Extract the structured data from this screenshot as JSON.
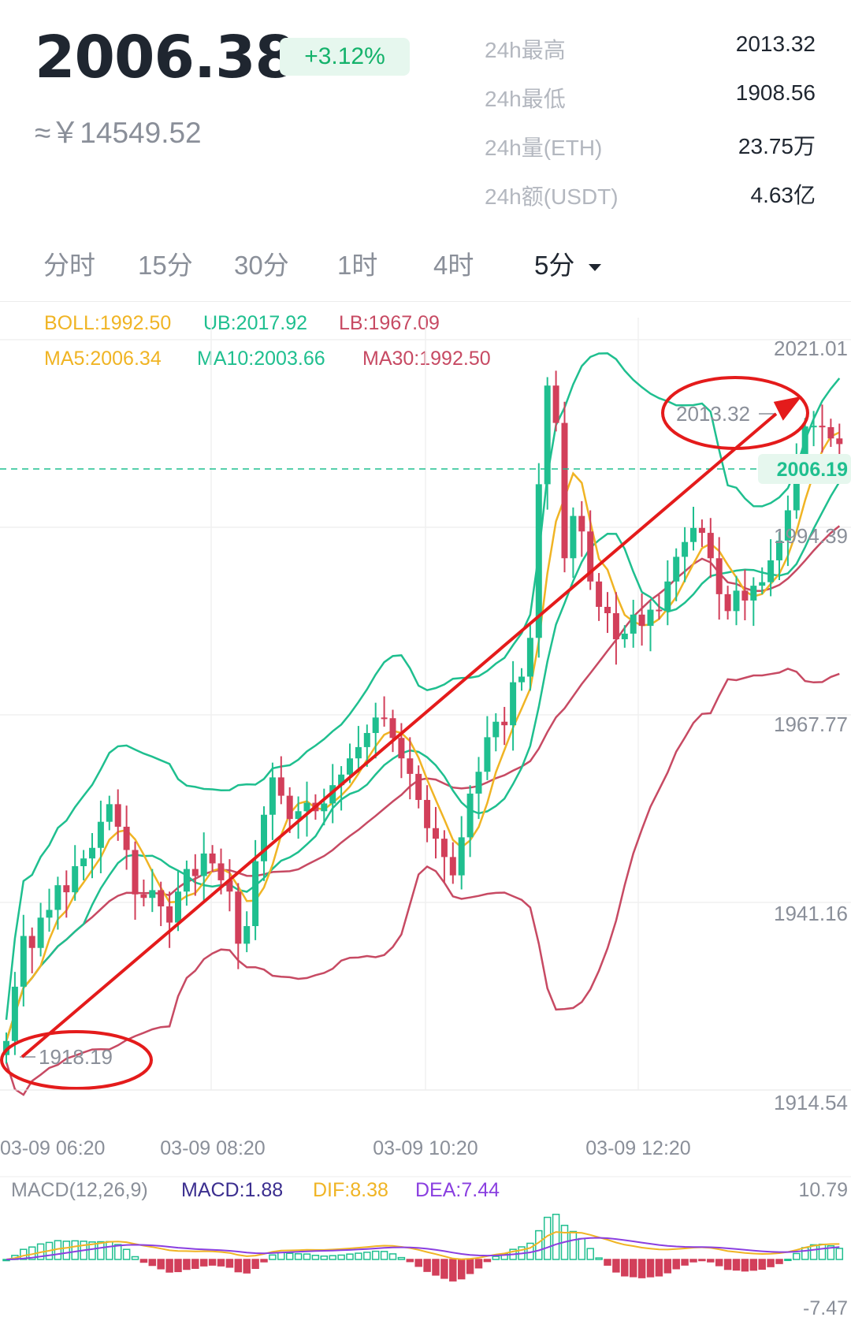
{
  "header": {
    "price": "2006.38",
    "change_pct": "+3.12%",
    "cny_price": "≈￥14549.52"
  },
  "stats": [
    {
      "label": "24h最高",
      "value": "2013.32"
    },
    {
      "label": "24h最低",
      "value": "1908.56"
    },
    {
      "label": "24h量(ETH)",
      "value": "23.75万"
    },
    {
      "label": "24h额(USDT)",
      "value": "4.63亿"
    }
  ],
  "tabs": [
    {
      "label": "分时",
      "active": false
    },
    {
      "label": "15分",
      "active": false
    },
    {
      "label": "30分",
      "active": false
    },
    {
      "label": "1时",
      "active": false
    },
    {
      "label": "4时",
      "active": false
    },
    {
      "label": "5分",
      "active": true,
      "icon": "caret-down-icon"
    }
  ],
  "indicators": {
    "boll": "BOLL:1992.50",
    "ub": "UB:2017.92",
    "lb": "LB:1967.09",
    "ma5": "MA5:2006.34",
    "ma10": "MA10:2003.66",
    "ma30": "MA30:1992.50"
  },
  "price_axis": [
    "2021.01",
    "1994.39",
    "1967.77",
    "1941.16",
    "1914.54"
  ],
  "current_price_tag": "2006.19",
  "annotations": {
    "high_label": "2013.32",
    "low_label": "1918.19"
  },
  "time_axis": [
    "03-09 06:20",
    "03-09 08:20",
    "03-09 10:20",
    "03-09 12:20"
  ],
  "macd": {
    "title": "MACD(12,26,9)",
    "macd": "MACD:1.88",
    "dif": "DIF:8.38",
    "dea": "DEA:7.44",
    "max": "10.79",
    "min": "-7.47"
  },
  "colors": {
    "up": "#1fbf8f",
    "down": "#d23f5a",
    "ma5": "#f0b424",
    "ma10": "#1fbf8f",
    "ma30": "#c74a63",
    "arrow": "#e41b1b",
    "dif": "#f0b424",
    "dea": "#8a3fe0"
  },
  "chart_data": {
    "type": "candlestick",
    "ylim": [
      1914.54,
      2021.01
    ],
    "y_ticks": [
      2021.01,
      1994.39,
      1967.77,
      1941.16,
      1914.54
    ],
    "x_ticks": [
      "03-09 06:20",
      "03-09 08:20",
      "03-09 10:20",
      "03-09 12:20"
    ],
    "close": [
      1921.5,
      1929.2,
      1936.4,
      1934.7,
      1939.0,
      1940.1,
      1943.6,
      1942.6,
      1946.3,
      1947.4,
      1948.9,
      1952.6,
      1955.1,
      1951.9,
      1948.6,
      1942.3,
      1941.8,
      1942.9,
      1940.6,
      1938.3,
      1942.7,
      1945.9,
      1944.9,
      1948.1,
      1946.7,
      1944.3,
      1942.7,
      1935.3,
      1937.8,
      1947.0,
      1953.6,
      1958.9,
      1956.3,
      1953.0,
      1954.1,
      1955.3,
      1954.1,
      1955.2,
      1957.8,
      1959.3,
      1961.6,
      1963.2,
      1965.2,
      1967.4,
      1967.3,
      1964.5,
      1961.6,
      1959.4,
      1955.7,
      1951.7,
      1950.2,
      1947.6,
      1945.0,
      1950.4,
      1956.6,
      1959.7,
      1964.6,
      1966.8,
      1966.3,
      1972.4,
      1973.2,
      1978.7,
      2000.5,
      2014.5,
      2009.2,
      1990.0,
      1996.0,
      1993.8,
      1986.7,
      1983.1,
      1982.2,
      1978.5,
      1979.3,
      1982.0,
      1980.4,
      1982.7,
      1982.5,
      1986.7,
      1990.2,
      1992.3,
      1994.3,
      1993.6,
      1990.0,
      1984.9,
      1982.5,
      1985.4,
      1984.0,
      1986.1,
      1986.6,
      1989.7,
      1992.5,
      1996.8,
      2003.3,
      2008.7,
      2008.8,
      2008.6,
      2007.0,
      2006.2
    ],
    "boll": {
      "ub_last": 2017.92,
      "mid_last": 1992.5,
      "lb_last": 1967.09
    },
    "ma": {
      "ma5_last": 2006.34,
      "ma10_last": 2003.66,
      "ma30_last": 1992.5
    },
    "marked_high": 2013.32,
    "marked_low": 1918.19,
    "current_price": 2006.19
  }
}
